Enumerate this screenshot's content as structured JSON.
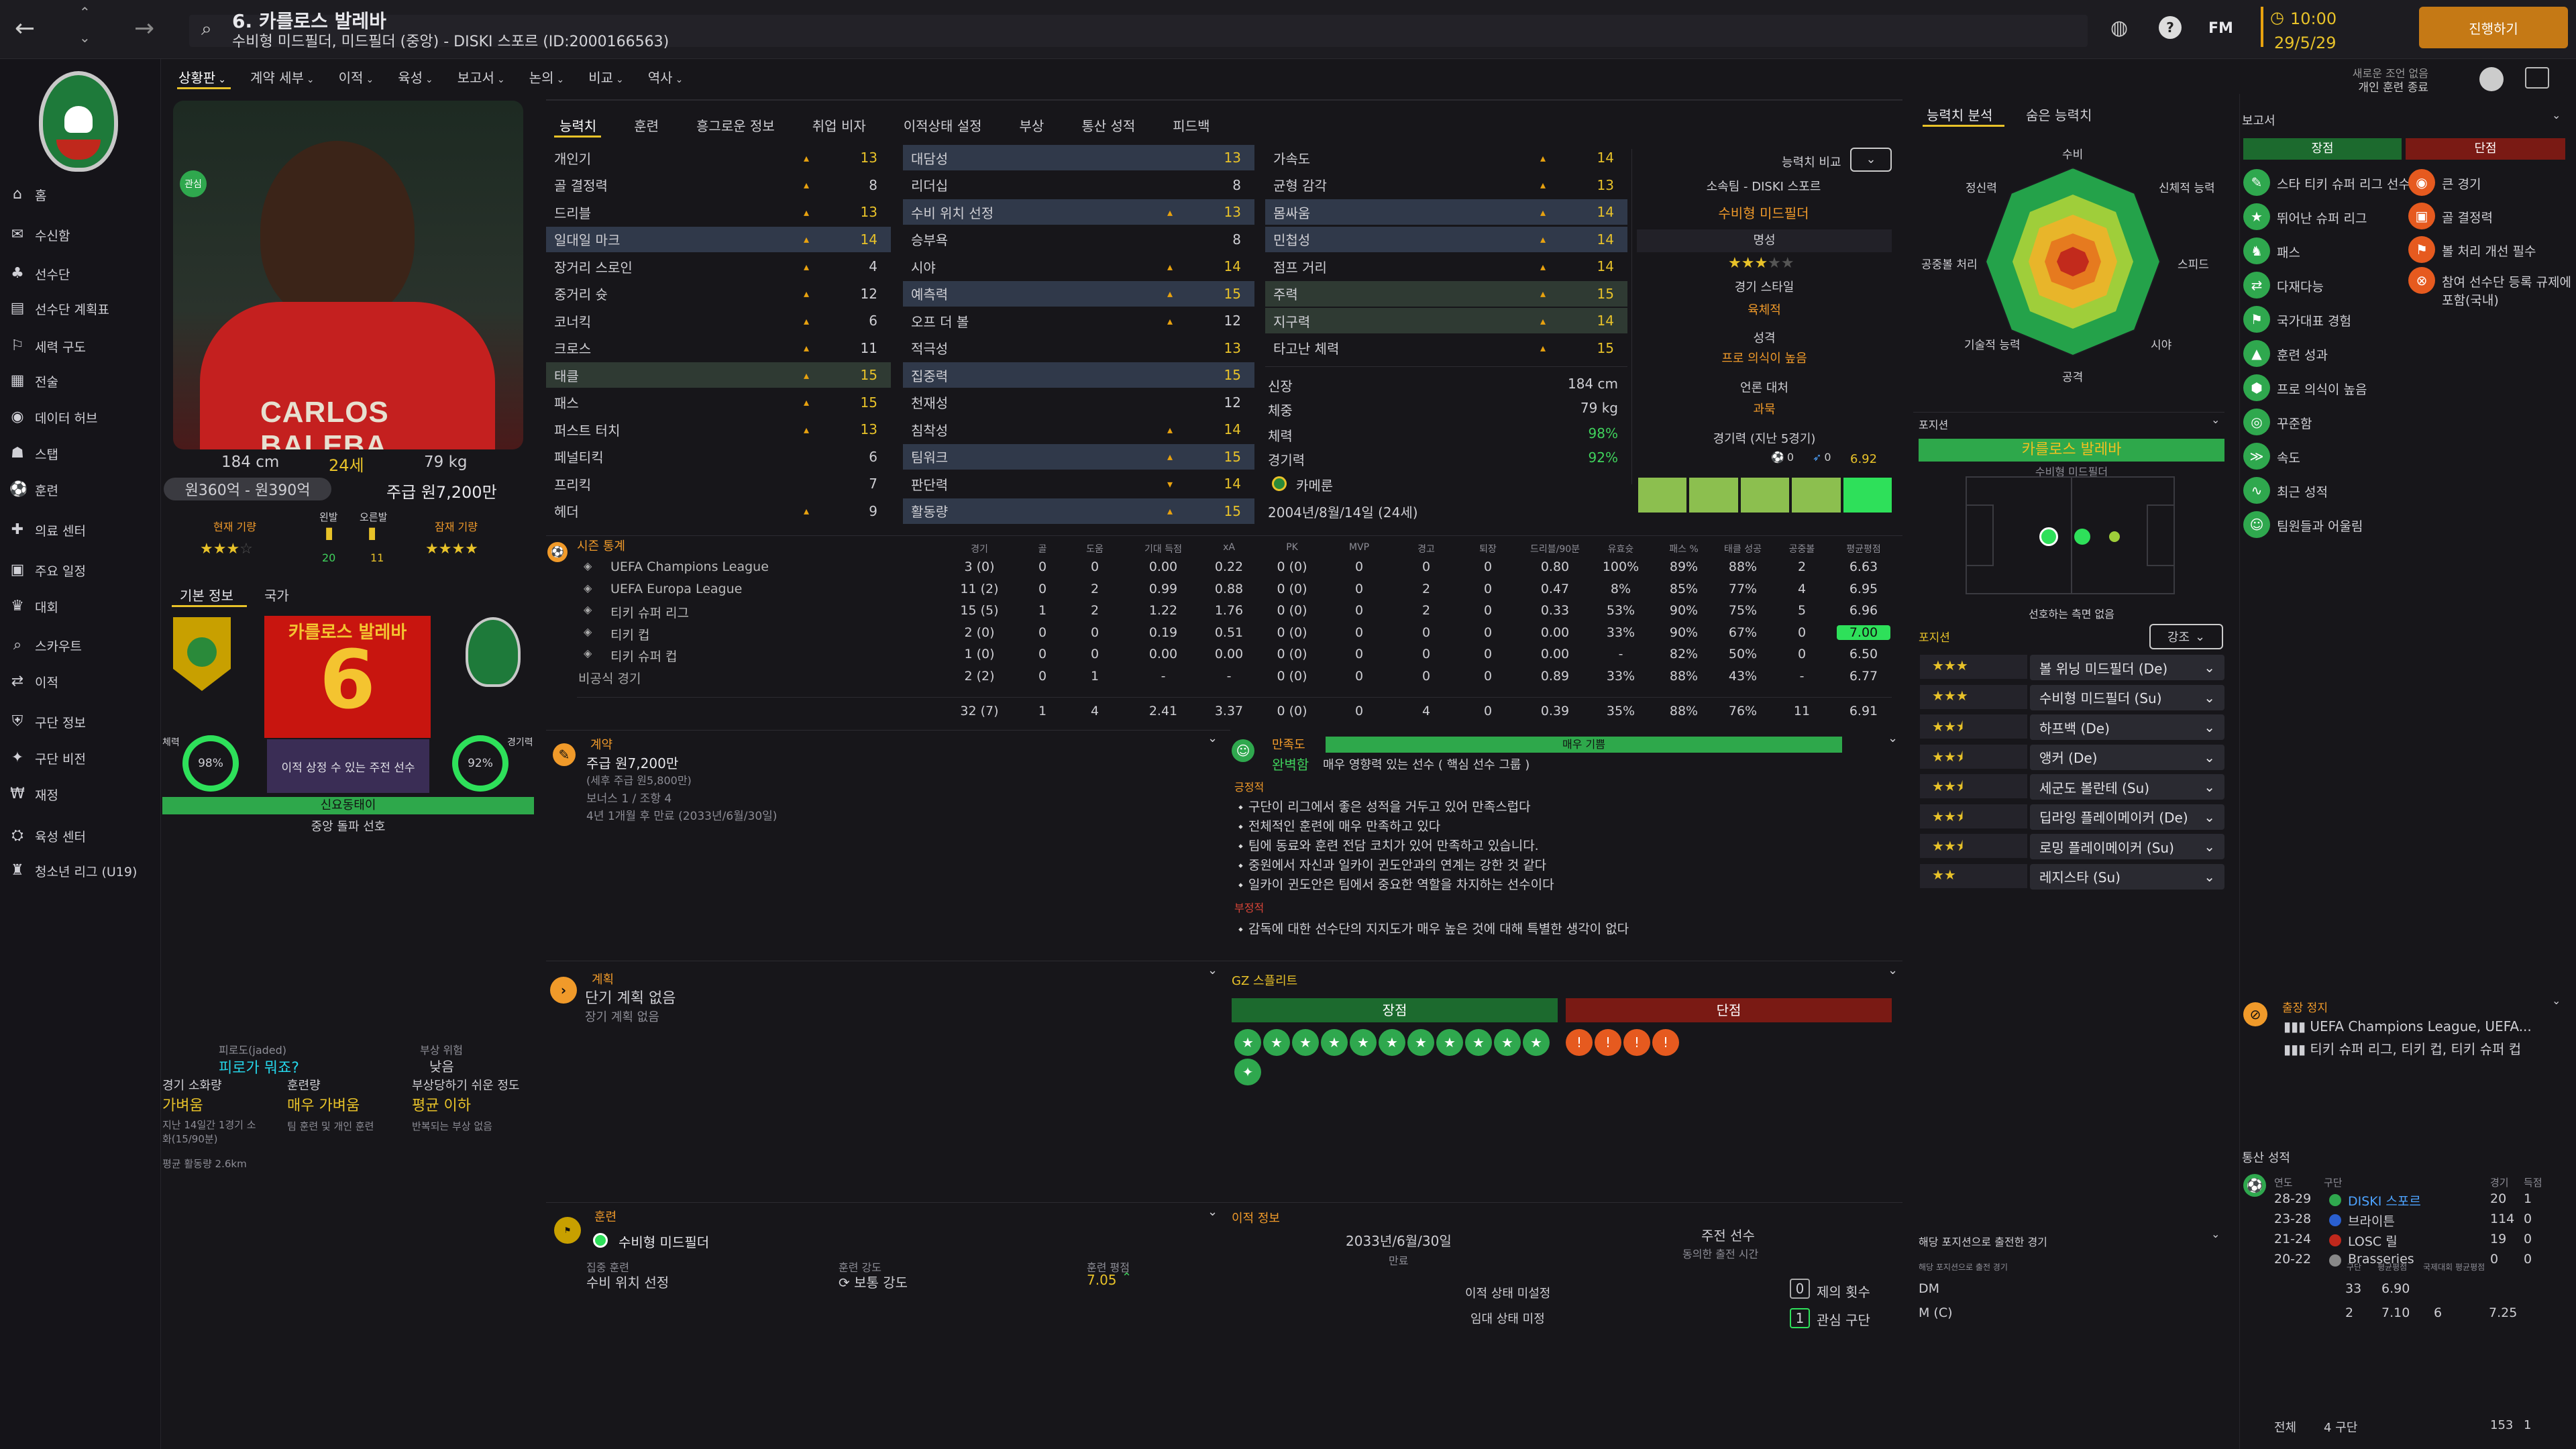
{
  "top": {
    "title": "6. 카를로스 발레바",
    "subtitle": "수비형 미드필더, 미드필더 (중앙) - DISKI 스포르 (ID:2000166563)",
    "fm": "FM",
    "time": "10:00",
    "date": "29/5/29",
    "continue": "진행하기",
    "notice": "새로운 조언 없음",
    "notice2": "개인 훈련 종료",
    "back_icon": "arrow-left-icon",
    "fwd_icon": "arrow-right-icon",
    "search_icon": "search-icon"
  },
  "nav": {
    "items": [
      "홈",
      "수신함",
      "선수단",
      "선수단 계획표",
      "세력 구도",
      "전술",
      "데이터 허브",
      "스탭",
      "훈련",
      "의료 센터",
      "주요 일정",
      "대회",
      "스카우트",
      "이적",
      "구단 정보",
      "구단 비전",
      "재정",
      "육성 센터",
      "청소년 리그 (U19)"
    ]
  },
  "subtabs": [
    "상황판",
    "계약 세부",
    "이적",
    "육성",
    "보고서",
    "논의",
    "비교",
    "역사"
  ],
  "player": {
    "name_shirt": "CARLOS BALEBA",
    "height": "184 cm",
    "age": "24세",
    "weight": "79 kg",
    "value": "원360억 - 원390억",
    "wage": "주급 원7,200만",
    "cur_ability": "현재 기량",
    "pot_ability": "잠재 기량",
    "left_foot": "왼발",
    "right_foot": "오른발",
    "left_val": "20",
    "right_val": "11",
    "captain_badge": "관심"
  },
  "basic": {
    "tab1": "기본 정보",
    "tab2": "국가",
    "kname": "카를로스 발레바",
    "number": "6",
    "fitness": "체력",
    "fit_val": "98%",
    "sharp": "경기력",
    "sharp_val": "92%",
    "role": "이적 상정 수 있는 주전 선수",
    "status": "신요동태이",
    "pref": "중앙 돌파 선호"
  },
  "fatigue": {
    "l1": "피로도(jaded)",
    "l2": "피로가 뭐죠?",
    "l3": "부상 위험",
    "l4": "낮음",
    "k1": "경기 소화량",
    "v1": "가벼움",
    "k2": "훈련량",
    "v2": "매우 가벼움",
    "k3": "부상당하기 쉬운 정도",
    "v3": "평균 이하",
    "n1": "지난 14일간 1경기 소화(15/90분)",
    "n2": "팀 훈련 및 개인 훈련",
    "n3": "반복되는 부상 없음",
    "n4": "평균 활동량 2.6km"
  },
  "attr_tabs": [
    "능력치",
    "훈련",
    "흥그로운 정보",
    "취업 비자",
    "이적상태 설정",
    "부상",
    "통산 성적",
    "피드백"
  ],
  "attrs": {
    "col1": [
      [
        "개인기",
        "13"
      ],
      [
        "골 결정력",
        "8"
      ],
      [
        "드리블",
        "13"
      ],
      [
        "일대일 마크",
        "14"
      ],
      [
        "장거리 스로인",
        "4"
      ],
      [
        "중거리 슛",
        "12"
      ],
      [
        "코너킥",
        "6"
      ],
      [
        "크로스",
        "11"
      ],
      [
        "태클",
        "15"
      ],
      [
        "패스",
        "15"
      ],
      [
        "퍼스트 터치",
        "13"
      ],
      [
        "페널티킥",
        "6"
      ],
      [
        "프리킥",
        "7"
      ],
      [
        "헤더",
        "9"
      ]
    ],
    "col2": [
      [
        "대담성",
        "13"
      ],
      [
        "리더십",
        "8"
      ],
      [
        "수비 위치 선정",
        "13"
      ],
      [
        "승부욕",
        "8"
      ],
      [
        "시야",
        "14"
      ],
      [
        "예측력",
        "15"
      ],
      [
        "오프 더 볼",
        "12"
      ],
      [
        "적극성",
        "13"
      ],
      [
        "집중력",
        "15"
      ],
      [
        "천재성",
        "12"
      ],
      [
        "침착성",
        "14"
      ],
      [
        "팀워크",
        "15"
      ],
      [
        "판단력",
        "14"
      ],
      [
        "활동량",
        "15"
      ]
    ],
    "col3": [
      [
        "가속도",
        "14"
      ],
      [
        "균형 감각",
        "13"
      ],
      [
        "몸싸움",
        "14"
      ],
      [
        "민첩성",
        "14"
      ],
      [
        "점프 거리",
        "14"
      ],
      [
        "주력",
        "15"
      ],
      [
        "지구력",
        "14"
      ],
      [
        "타고난 체력",
        "15"
      ]
    ]
  },
  "bio": {
    "h_k": "신장",
    "h_v": "184 cm",
    "w_k": "체중",
    "w_v": "79 kg",
    "f_k": "체력",
    "f_v": "98%",
    "s_k": "경기력",
    "s_v": "92%",
    "nation": "카메룬",
    "dob": "2004년/8월/14일 (24세)"
  },
  "compare": {
    "label": "능력치 비교",
    "club": "소속팀 - DISKI 스포르",
    "pos": "수비형 미드필더",
    "rep": "명성",
    "style": "경기 스타일",
    "style_v": "육체적",
    "pers": "성격",
    "pers_v": "프로 의식이 높음",
    "media": "언론 대처",
    "media_v": "과묵",
    "last5": "경기력 (지난 5경기)",
    "rating": "6.92",
    "goals": "0",
    "assists": "0"
  },
  "season": {
    "title": "시즌 통계",
    "cols": [
      "경기",
      "골",
      "도움",
      "기대 득점",
      "xA",
      "PK",
      "MVP",
      "경고",
      "퇴장",
      "드리블/90분",
      "유효슛",
      "패스 %",
      "태클 성공",
      "공중볼",
      "평균평점"
    ],
    "rows": [
      [
        "UEFA Champions League",
        "3 (0)",
        "0",
        "0",
        "0.00",
        "0.22",
        "0 (0)",
        "0",
        "0",
        "0",
        "0.80",
        "100%",
        "89%",
        "88%",
        "2",
        "6.63"
      ],
      [
        "UEFA Europa League",
        "11 (2)",
        "0",
        "2",
        "0.99",
        "0.88",
        "0 (0)",
        "0",
        "2",
        "0",
        "0.47",
        "8%",
        "85%",
        "77%",
        "4",
        "6.95"
      ],
      [
        "티키 슈퍼 리그",
        "15 (5)",
        "1",
        "2",
        "1.22",
        "1.76",
        "0 (0)",
        "0",
        "2",
        "0",
        "0.33",
        "53%",
        "90%",
        "75%",
        "5",
        "6.96"
      ],
      [
        "티키 컵",
        "2 (0)",
        "0",
        "0",
        "0.19",
        "0.51",
        "0 (0)",
        "0",
        "0",
        "0",
        "0.00",
        "33%",
        "90%",
        "67%",
        "0",
        "7.00"
      ],
      [
        "티키 슈퍼 컵",
        "1 (0)",
        "0",
        "0",
        "0.00",
        "0.00",
        "0 (0)",
        "0",
        "0",
        "0",
        "0.00",
        "-",
        "82%",
        "50%",
        "0",
        "6.50"
      ],
      [
        "비공식 경기",
        "2 (2)",
        "0",
        "1",
        "-",
        "-",
        "0 (0)",
        "0",
        "0",
        "0",
        "0.89",
        "33%",
        "88%",
        "43%",
        "-",
        "6.77"
      ],
      [
        "",
        "32 (7)",
        "1",
        "4",
        "2.41",
        "3.37",
        "0 (0)",
        "0",
        "4",
        "0",
        "0.39",
        "35%",
        "88%",
        "76%",
        "11",
        "6.91"
      ]
    ]
  },
  "contract": {
    "title": "계약",
    "wage": "주급 원7,200만",
    "sub": "(세후 주급 원5,800만)",
    "bonus": "보너스 1 / 조항 4",
    "expiry": "4년 1개월 후 만료 (2033년/6월/30일)"
  },
  "happy": {
    "title": "만족도",
    "level": "매우 기쁨",
    "v": "완벽함",
    "desc": "매우 영향력 있는 선수 ( 핵심 선수 그룹 )",
    "pos_h": "긍정적",
    "pos": [
      "구단이 리그에서 좋은 성적을 거두고 있어 만족스럽다",
      "전체적인 훈련에 매우 만족하고 있다",
      "팀에 동료와 훈련 전담 코치가 있어 만족하고 있습니다.",
      "중원에서 자신과 일카이 귄도안과의 연계는 강한 것 같다",
      "일카이 귄도안은 팀에서 중요한 역할을 차지하는 선수이다"
    ],
    "neg_h": "부정적",
    "neg": [
      "감독에 대한 선수단의 지지도가 매우 높은 것에 대해 특별한 생각이 없다"
    ]
  },
  "plan": {
    "title": "계획",
    "short": "단기 계획 없음",
    "long": "장기 계획 없음"
  },
  "gz": {
    "title": "GZ 스플리트",
    "pros": "장점",
    "cons": "단점"
  },
  "training": {
    "title": "훈련",
    "role": "수비형 미드필더",
    "focus_k": "집중 훈련",
    "focus_v": "수비 위치 선정",
    "int_k": "훈련 강도",
    "int_v": "보통 강도",
    "rat_k": "훈련 평점",
    "rat_v": "7.05"
  },
  "transfer": {
    "title": "이적 정보",
    "date": "2033년/6월/30일",
    "date_k": "만료",
    "squad": "주전 선수",
    "squad_k": "동의한 출전 시간",
    "status1": "이적 상태 미설정",
    "status2": "임대 상태 미정",
    "offers_k": "제의 횟수",
    "offers": "0",
    "int_k": "관심 구단",
    "int": "1"
  },
  "analysis": {
    "tab1": "능력치 분석",
    "tab2": "숨은 능력치",
    "axes": [
      "수비",
      "신체적 능력",
      "스피드",
      "시야",
      "공격",
      "기술적 능력",
      "공중볼 처리",
      "정신력"
    ]
  },
  "position": {
    "title": "포지션",
    "name": "카를로스 발레바",
    "role": "수비형 미드필더",
    "note": "선호하는 측면 없음",
    "label": "포지션",
    "sort": "강조"
  },
  "roles": [
    [
      "볼 위닝 미드필더 (De)",
      "3"
    ],
    [
      "수비형 미드필더 (Su)",
      "3"
    ],
    [
      "하프백 (De)",
      "2.5"
    ],
    [
      "앵커 (De)",
      "2.5"
    ],
    [
      "세군도 볼란테 (Su)",
      "2.5"
    ],
    [
      "딥라잉 플레이메이커 (De)",
      "2.5"
    ],
    [
      "로밍 플레이메이커 (Su)",
      "2.5"
    ],
    [
      "레지스타 (Su)",
      "2"
    ]
  ],
  "played": {
    "title": "해당 포지션으로 출전한 경기",
    "sub": "해당 포지션으로 출전 경기",
    "cols": [
      "구단",
      "평균평점",
      "국제대회",
      "평균평점"
    ],
    "rows": [
      [
        "DM",
        "33",
        "6.90",
        "",
        ""
      ],
      [
        "M (C)",
        "2",
        "7.10",
        "6",
        "7.25"
      ]
    ]
  },
  "report": {
    "title": "보고서",
    "pros_h": "장점",
    "cons_h": "단점",
    "pros": [
      "스타 티키 슈퍼 리그 선수",
      "뛰어난 슈퍼 리그",
      "패스",
      "다재다능",
      "국가대표 경험",
      "훈련 성과",
      "프로 의식이 높음",
      "꾸준함",
      "속도",
      "최근 성적",
      "팀원들과 어울림"
    ],
    "cons": [
      "큰 경기",
      "골 결정력",
      "볼 처리 개선 필수",
      "참여 선수단 등록 규제에 포함(국내)"
    ],
    "ban_t": "출장 정지",
    "ban1": "UEFA Champions League, UEFA...",
    "ban2": "티키 슈퍼 리그, 티키 컵, 티키 슈퍼 컵"
  },
  "history": {
    "title": "통산 성적",
    "cols": [
      "연도",
      "구단",
      "경기",
      "득점"
    ],
    "rows": [
      [
        "28-29",
        "DISKI 스포르",
        "20",
        "1"
      ],
      [
        "23-28",
        "브라이튼",
        "114",
        "0"
      ],
      [
        "21-24",
        "LOSC 릴",
        "19",
        "0"
      ],
      [
        "20-22",
        "Brasseries",
        "0",
        "0"
      ]
    ],
    "total_k": "전체",
    "total_c": "4 구단",
    "total_g": "153",
    "total_s": "1"
  },
  "colors": {
    "accent": "#e8c229",
    "green": "#2ee05a",
    "red": "#c0281c",
    "orange": "#f09a2a"
  }
}
